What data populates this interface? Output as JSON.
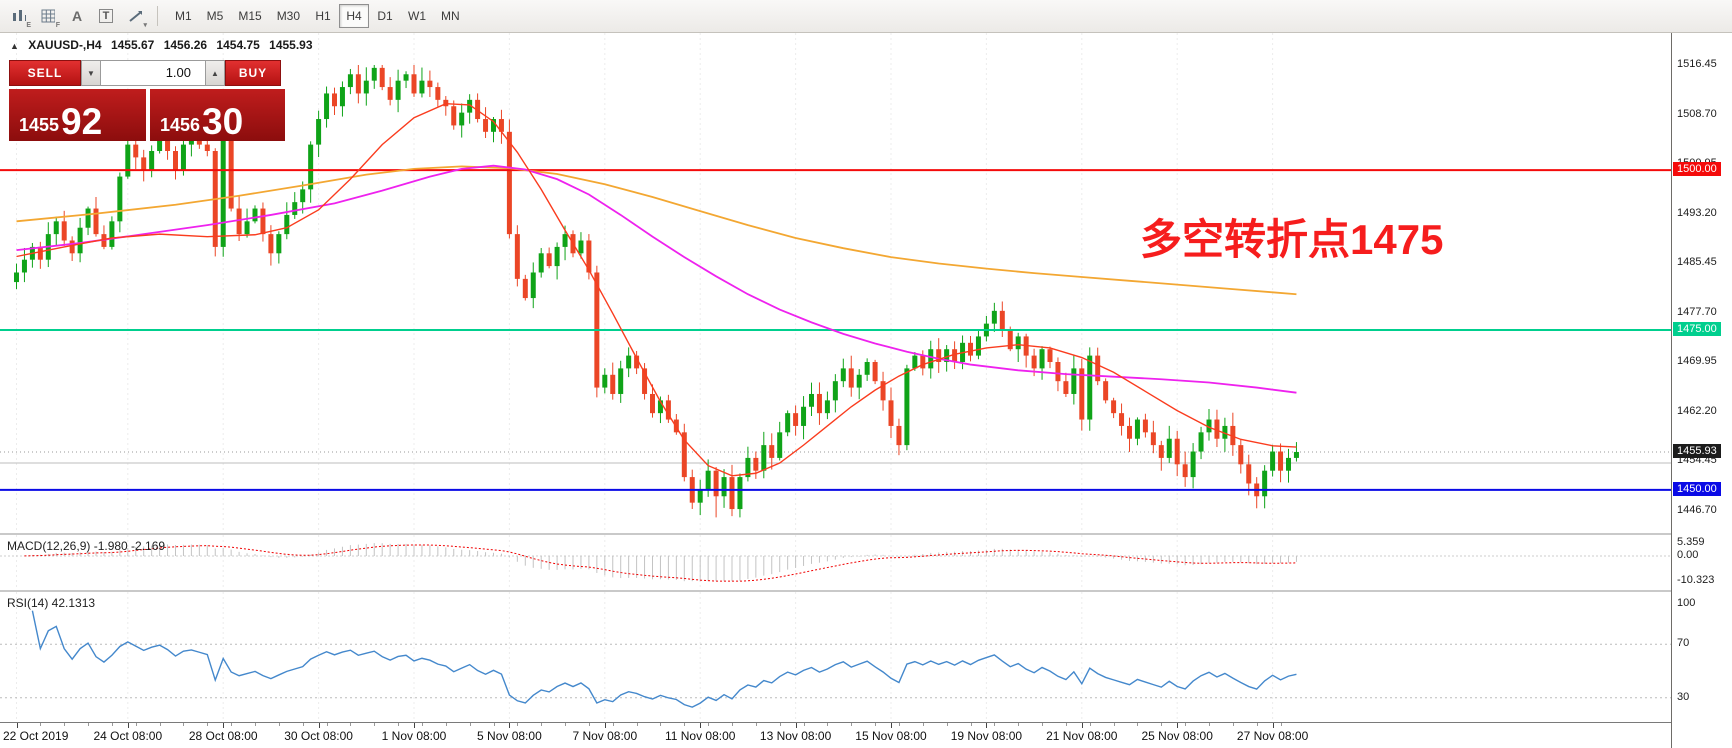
{
  "toolbar": {
    "tool_icons": [
      {
        "name": "chart-style-icon",
        "sub": "E"
      },
      {
        "name": "grid-icon",
        "sub": "F"
      },
      {
        "name": "text-tool-icon",
        "glyph": "A"
      },
      {
        "name": "text-box-tool-icon",
        "glyph": "T"
      },
      {
        "name": "draw-tools-icon",
        "sub": "▾"
      }
    ],
    "timeframes": [
      "M1",
      "M5",
      "M15",
      "M30",
      "H1",
      "H4",
      "D1",
      "W1",
      "MN"
    ],
    "active_timeframe": "H4"
  },
  "header": {
    "collapse_arrow": "▲",
    "symbol": "XAUUSD-,H4",
    "open": "1455.67",
    "high": "1456.26",
    "low": "1454.75",
    "close": "1455.93"
  },
  "trade_panel": {
    "sell_label": "SELL",
    "buy_label": "BUY",
    "volume": "1.00",
    "spinner_down": "▼",
    "spinner_up": "▲",
    "sell_price_small": "1455",
    "sell_price_big": "92",
    "buy_price_small": "1456",
    "buy_price_big": "30"
  },
  "annotation": {
    "text": "多空转折点1475",
    "color": "#f61d1d"
  },
  "price_axis": {
    "ticks": [
      {
        "label": "1516.45",
        "value": 1516.45
      },
      {
        "label": "1508.70",
        "value": 1508.7
      },
      {
        "label": "1500.95",
        "value": 1500.95
      },
      {
        "label": "1493.20",
        "value": 1493.2
      },
      {
        "label": "1485.45",
        "value": 1485.45
      },
      {
        "label": "1477.70",
        "value": 1477.7
      },
      {
        "label": "1469.95",
        "value": 1469.95
      },
      {
        "label": "1462.20",
        "value": 1462.2
      },
      {
        "label": "1454.45",
        "value": 1454.45
      },
      {
        "label": "1446.70",
        "value": 1446.7
      }
    ]
  },
  "levels": [
    {
      "label": "1500.00",
      "value": 1500.0,
      "color": "#f40b0b"
    },
    {
      "label": "1475.00",
      "value": 1475.0,
      "color": "#00cf8e"
    },
    {
      "label": "1450.00",
      "value": 1450.0,
      "color": "#0a0ae6"
    }
  ],
  "current_price": {
    "label": "1455.93",
    "value": 1455.93,
    "badge_color": "#1c1c1c"
  },
  "gray_line_value": 1454.2,
  "macd_panel": {
    "label": "MACD(12,26,9) -1.980 -2.169",
    "axis": [
      {
        "label": "5.359",
        "value": 5.359
      },
      {
        "label": "0.00",
        "value": 0
      },
      {
        "label": "-10.323",
        "value": -10.323
      }
    ],
    "fast": 12,
    "slow": 26,
    "signal": 9
  },
  "rsi_panel": {
    "label": "RSI(14) 42.1313",
    "axis": [
      {
        "label": "100",
        "value": 100
      },
      {
        "label": "70",
        "value": 70
      },
      {
        "label": "30",
        "value": 30
      }
    ],
    "guide_levels": [
      70,
      30
    ],
    "period": 14,
    "value": 42.1313
  },
  "time_axis": {
    "ticks": [
      {
        "label": "22 Oct 2019",
        "idx": 0
      },
      {
        "label": "24 Oct 08:00",
        "idx": 14
      },
      {
        "label": "28 Oct 08:00",
        "idx": 26
      },
      {
        "label": "30 Oct 08:00",
        "idx": 38
      },
      {
        "label": "1 Nov 08:00",
        "idx": 50
      },
      {
        "label": "5 Nov 08:00",
        "idx": 62
      },
      {
        "label": "7 Nov 08:00",
        "idx": 74
      },
      {
        "label": "11 Nov 08:00",
        "idx": 86
      },
      {
        "label": "13 Nov 08:00",
        "idx": 98
      },
      {
        "label": "15 Nov 08:00",
        "idx": 110
      },
      {
        "label": "19 Nov 08:00",
        "idx": 122
      },
      {
        "label": "21 Nov 08:00",
        "idx": 134
      },
      {
        "label": "25 Nov 08:00",
        "idx": 146
      },
      {
        "label": "27 Nov 08:00",
        "idx": 158
      }
    ]
  },
  "chart_data": {
    "type": "candlestick",
    "symbol": "XAUUSD",
    "timeframe": "H4",
    "high_max": 1516.45,
    "low_min": 1445.7,
    "closes": [
      1484,
      1486,
      1488,
      1486,
      1490,
      1492,
      1489,
      1487,
      1491,
      1494,
      1490,
      1488,
      1492,
      1499,
      1504,
      1502,
      1500,
      1503,
      1505,
      1503,
      1500,
      1504,
      1505,
      1504,
      1503,
      1488,
      1506,
      1494,
      1490,
      1492,
      1494,
      1490,
      1487,
      1490,
      1493,
      1495,
      1497,
      1504,
      1508,
      1512,
      1510,
      1513,
      1515,
      1512,
      1514,
      1516,
      1513,
      1511,
      1514,
      1515,
      1512,
      1514,
      1513,
      1511,
      1510,
      1507,
      1509,
      1511,
      1508,
      1506,
      1508,
      1506,
      1490,
      1483,
      1480,
      1484,
      1487,
      1485,
      1488,
      1490,
      1487,
      1489,
      1484,
      1466,
      1468,
      1465,
      1469,
      1471,
      1469,
      1465,
      1462,
      1464,
      1461,
      1459,
      1452,
      1448,
      1450,
      1453,
      1449,
      1452,
      1447,
      1452,
      1455,
      1453,
      1457,
      1455,
      1459,
      1462,
      1460,
      1463,
      1465,
      1462,
      1464,
      1467,
      1469,
      1466,
      1468,
      1470,
      1467,
      1464,
      1460,
      1457,
      1469,
      1471,
      1469,
      1472,
      1470,
      1472,
      1470,
      1473,
      1471,
      1474,
      1476,
      1478,
      1475,
      1472,
      1474,
      1471,
      1469,
      1472,
      1470,
      1467,
      1465,
      1469,
      1461,
      1471,
      1467,
      1464,
      1462,
      1460,
      1458,
      1461,
      1459,
      1457,
      1455,
      1458,
      1454,
      1452,
      1456,
      1459,
      1461,
      1458,
      1460,
      1457,
      1454,
      1451,
      1449,
      1453,
      1456,
      1453,
      1455,
      1455.93
    ],
    "ma_lines": {
      "orange": [
        [
          0,
          1492
        ],
        [
          10,
          1493.2
        ],
        [
          20,
          1494.6
        ],
        [
          28,
          1496
        ],
        [
          36,
          1497.6
        ],
        [
          44,
          1499.3
        ],
        [
          50,
          1500.2
        ],
        [
          56,
          1500.6
        ],
        [
          62,
          1500.3
        ],
        [
          68,
          1499.4
        ],
        [
          74,
          1497.8
        ],
        [
          80,
          1495.8
        ],
        [
          86,
          1493.6
        ],
        [
          92,
          1491.4
        ],
        [
          98,
          1489.4
        ],
        [
          104,
          1487.8
        ],
        [
          110,
          1486.4
        ],
        [
          116,
          1485.4
        ],
        [
          122,
          1484.6
        ],
        [
          128,
          1483.9
        ],
        [
          134,
          1483.3
        ],
        [
          140,
          1482.7
        ],
        [
          146,
          1482.1
        ],
        [
          152,
          1481.5
        ],
        [
          158,
          1480.9
        ],
        [
          161,
          1480.6
        ]
      ],
      "magenta": [
        [
          0,
          1487.5
        ],
        [
          8,
          1488.6
        ],
        [
          16,
          1490
        ],
        [
          24,
          1491.4
        ],
        [
          32,
          1493
        ],
        [
          40,
          1494.8
        ],
        [
          46,
          1496.8
        ],
        [
          52,
          1499
        ],
        [
          56,
          1500.2
        ],
        [
          60,
          1500.7
        ],
        [
          64,
          1500.1
        ],
        [
          68,
          1498.6
        ],
        [
          72,
          1496.2
        ],
        [
          76,
          1493
        ],
        [
          80,
          1489.6
        ],
        [
          84,
          1486.4
        ],
        [
          88,
          1483.4
        ],
        [
          92,
          1480.6
        ],
        [
          96,
          1478.2
        ],
        [
          100,
          1476.2
        ],
        [
          104,
          1474.4
        ],
        [
          108,
          1472.9
        ],
        [
          112,
          1471.6
        ],
        [
          116,
          1470.5
        ],
        [
          120,
          1469.6
        ],
        [
          126,
          1468.7
        ],
        [
          132,
          1468.1
        ],
        [
          138,
          1467.7
        ],
        [
          144,
          1467.3
        ],
        [
          150,
          1466.8
        ],
        [
          156,
          1466
        ],
        [
          161,
          1465.2
        ]
      ],
      "red": [
        [
          0,
          1486.5
        ],
        [
          6,
          1488
        ],
        [
          12,
          1489.4
        ],
        [
          18,
          1490
        ],
        [
          24,
          1489.6
        ],
        [
          30,
          1489.9
        ],
        [
          34,
          1491
        ],
        [
          38,
          1493.8
        ],
        [
          42,
          1498.6
        ],
        [
          46,
          1504
        ],
        [
          50,
          1508.2
        ],
        [
          54,
          1510.4
        ],
        [
          57,
          1510.2
        ],
        [
          60,
          1507.6
        ],
        [
          63,
          1502.8
        ],
        [
          66,
          1497
        ],
        [
          69,
          1490.6
        ],
        [
          72,
          1484.4
        ],
        [
          75,
          1477.6
        ],
        [
          78,
          1470.6
        ],
        [
          81,
          1463.8
        ],
        [
          84,
          1457.8
        ],
        [
          87,
          1453.8
        ],
        [
          90,
          1452.2
        ],
        [
          93,
          1452.6
        ],
        [
          96,
          1454.2
        ],
        [
          99,
          1457
        ],
        [
          102,
          1460
        ],
        [
          105,
          1463
        ],
        [
          108,
          1465.6
        ],
        [
          111,
          1467.8
        ],
        [
          114,
          1469.6
        ],
        [
          118,
          1471.2
        ],
        [
          122,
          1472.2
        ],
        [
          126,
          1472.7
        ],
        [
          130,
          1472.2
        ],
        [
          134,
          1470.7
        ],
        [
          138,
          1468.4
        ],
        [
          142,
          1465.4
        ],
        [
          146,
          1462.4
        ],
        [
          150,
          1459.8
        ],
        [
          154,
          1457.9
        ],
        [
          158,
          1456.9
        ],
        [
          161,
          1456.7
        ]
      ]
    },
    "colors": {
      "up": "#0fa318",
      "down": "#eb4626",
      "ma_red": "#fa3c1e",
      "ma_magenta": "#ee22ee",
      "ma_orange": "#f3a732",
      "rsi": "#4488cc",
      "macd_signal": "#f00000",
      "macd_hist": "#c4c4c4"
    }
  }
}
